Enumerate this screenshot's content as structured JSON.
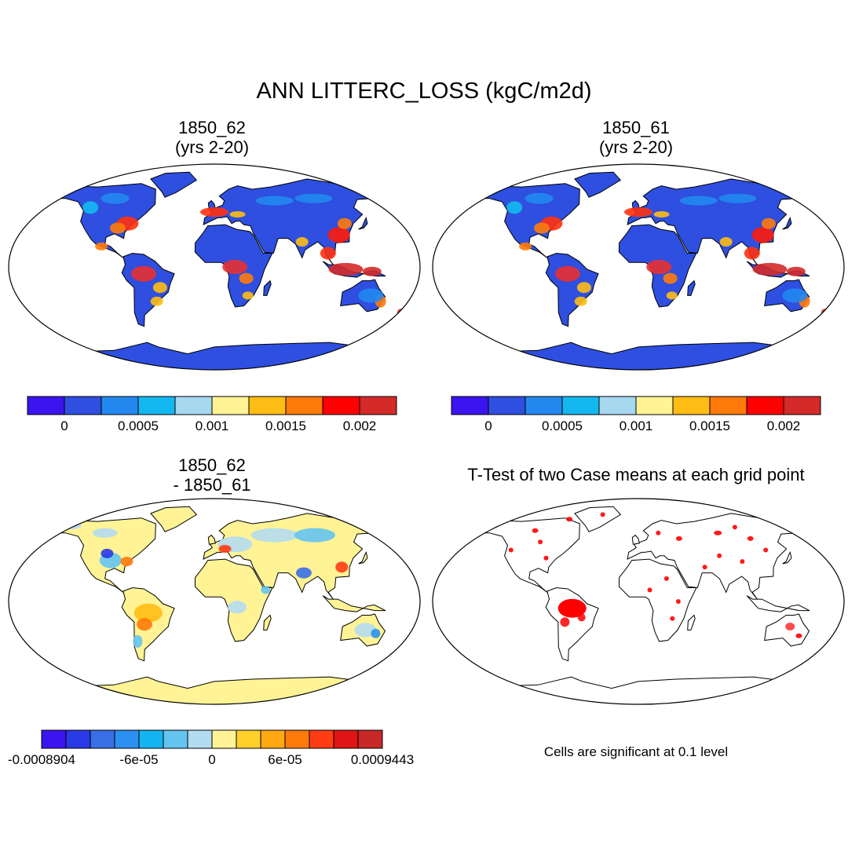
{
  "figure": {
    "title": "ANN LITTERC_LOSS (kgC/m2d)"
  },
  "chart_data": [
    {
      "type": "heatmap",
      "title_line1": "1850_62",
      "title_line2": "(yrs 2-20)",
      "colorbar": {
        "colors": [
          "#3b14f0",
          "#2e4fe0",
          "#2288f0",
          "#14b8f0",
          "#a6d8f0",
          "#fff396",
          "#ffbc14",
          "#ff7a0a",
          "#ff0000",
          "#d42a2a"
        ],
        "ticks": [
          {
            "index": 1,
            "label": "0"
          },
          {
            "index": 3,
            "label": "0.0005"
          },
          {
            "index": 5,
            "label": "0.001"
          },
          {
            "index": 7,
            "label": "0.0015"
          },
          {
            "index": 9,
            "label": "0.002"
          }
        ]
      }
    },
    {
      "type": "heatmap",
      "title_line1": "1850_61",
      "title_line2": "(yrs 2-20)",
      "colorbar": {
        "colors": [
          "#3b14f0",
          "#2e4fe0",
          "#2288f0",
          "#14b8f0",
          "#a6d8f0",
          "#fff396",
          "#ffbc14",
          "#ff7a0a",
          "#ff0000",
          "#d42a2a"
        ],
        "ticks": [
          {
            "index": 1,
            "label": "0"
          },
          {
            "index": 3,
            "label": "0.0005"
          },
          {
            "index": 5,
            "label": "0.001"
          },
          {
            "index": 7,
            "label": "0.0015"
          },
          {
            "index": 9,
            "label": "0.002"
          }
        ]
      }
    },
    {
      "type": "heatmap",
      "title_line1": "1850_62",
      "title_line2": "- 1850_61",
      "colorbar": {
        "colors": [
          "#3b14f0",
          "#2a3ae6",
          "#3a6ee6",
          "#2c90f0",
          "#14b4f0",
          "#64c4f0",
          "#b4dcf0",
          "#fff396",
          "#ffcf2a",
          "#ffa814",
          "#ff7a0a",
          "#ff3c14",
          "#e01414",
          "#c82828"
        ],
        "ticks": [
          {
            "index": 0,
            "label": "-0.0008904"
          },
          {
            "index": 4,
            "label": "-6e-05"
          },
          {
            "index": 7,
            "label": "0"
          },
          {
            "index": 10,
            "label": "6e-05"
          },
          {
            "index": 14,
            "label": "0.0009443"
          }
        ]
      }
    },
    {
      "type": "heatmap",
      "title_line1": "T-Test of two Case means at each grid point",
      "note": "Cells are significant at 0.1 level",
      "significance_color": "#ff0000"
    }
  ]
}
